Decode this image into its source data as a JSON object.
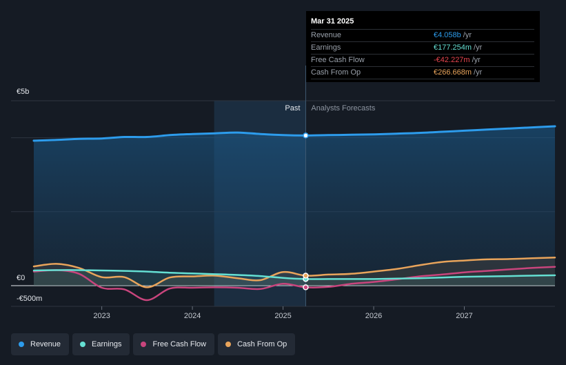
{
  "chart_data": {
    "type": "area",
    "x": [
      2022.25,
      2022.5,
      2022.75,
      2023.0,
      2023.25,
      2023.5,
      2023.75,
      2024.0,
      2024.25,
      2024.5,
      2024.75,
      2025.0,
      2025.25,
      2025.5,
      2025.75,
      2026.0,
      2026.25,
      2026.5,
      2026.75,
      2027.0,
      2027.25,
      2027.5,
      2027.75,
      2028.0
    ],
    "series": [
      {
        "name": "Revenue",
        "color": "#2d9cec",
        "values": [
          3.92,
          3.94,
          3.97,
          3.98,
          4.02,
          4.02,
          4.07,
          4.1,
          4.12,
          4.14,
          4.1,
          4.07,
          4.06,
          4.07,
          4.08,
          4.09,
          4.11,
          4.13,
          4.16,
          4.19,
          4.22,
          4.25,
          4.28,
          4.31
        ]
      },
      {
        "name": "Earnings",
        "color": "#65e0d3",
        "values": [
          0.41,
          0.42,
          0.42,
          0.41,
          0.4,
          0.38,
          0.35,
          0.33,
          0.31,
          0.29,
          0.26,
          0.21,
          0.18,
          0.18,
          0.18,
          0.18,
          0.19,
          0.2,
          0.22,
          0.24,
          0.25,
          0.26,
          0.27,
          0.28
        ]
      },
      {
        "name": "Free Cash Flow",
        "color": "#c9457d",
        "values": [
          0.38,
          0.42,
          0.32,
          -0.05,
          -0.09,
          -0.35,
          -0.07,
          -0.05,
          -0.04,
          -0.05,
          -0.08,
          0.05,
          -0.04,
          -0.03,
          0.05,
          0.1,
          0.17,
          0.25,
          0.3,
          0.36,
          0.4,
          0.44,
          0.48,
          0.51
        ]
      },
      {
        "name": "Cash From Op",
        "color": "#e9a45b",
        "values": [
          0.52,
          0.59,
          0.48,
          0.23,
          0.23,
          -0.04,
          0.22,
          0.25,
          0.27,
          0.2,
          0.15,
          0.37,
          0.27,
          0.3,
          0.32,
          0.38,
          0.45,
          0.55,
          0.64,
          0.68,
          0.71,
          0.72,
          0.74,
          0.76
        ]
      }
    ],
    "y_axis_labels": [
      "€5b",
      "€0",
      "-€500m"
    ],
    "x_tick_labels": [
      "2023",
      "2024",
      "2025",
      "2026",
      "2027"
    ],
    "x_ticks": [
      2023,
      2024,
      2025,
      2026,
      2027
    ],
    "ylim": [
      -0.5,
      5
    ],
    "xlim": [
      2022.0,
      2028.0
    ],
    "divider_x": 2025.25,
    "highlight_start": 2024.24,
    "past_label": "Past",
    "forecast_label": "Analysts Forecasts",
    "grid": true
  },
  "tooltip": {
    "date": "Mar 31 2025",
    "rows": [
      {
        "label": "Revenue",
        "value": "€4.058b",
        "unit": "/yr",
        "color": "#2d9cec"
      },
      {
        "label": "Earnings",
        "value": "€177.254m",
        "unit": "/yr",
        "color": "#65e0d3"
      },
      {
        "label": "Free Cash Flow",
        "value": "-€42.227m",
        "unit": "/yr",
        "color": "#e8464f"
      },
      {
        "label": "Cash From Op",
        "value": "€266.668m",
        "unit": "/yr",
        "color": "#e9a45b"
      }
    ]
  },
  "legend": [
    {
      "label": "Revenue",
      "color": "#2d9cec"
    },
    {
      "label": "Earnings",
      "color": "#65e0d3"
    },
    {
      "label": "Free Cash Flow",
      "color": "#c9457d"
    },
    {
      "label": "Cash From Op",
      "color": "#e9a45b"
    }
  ]
}
